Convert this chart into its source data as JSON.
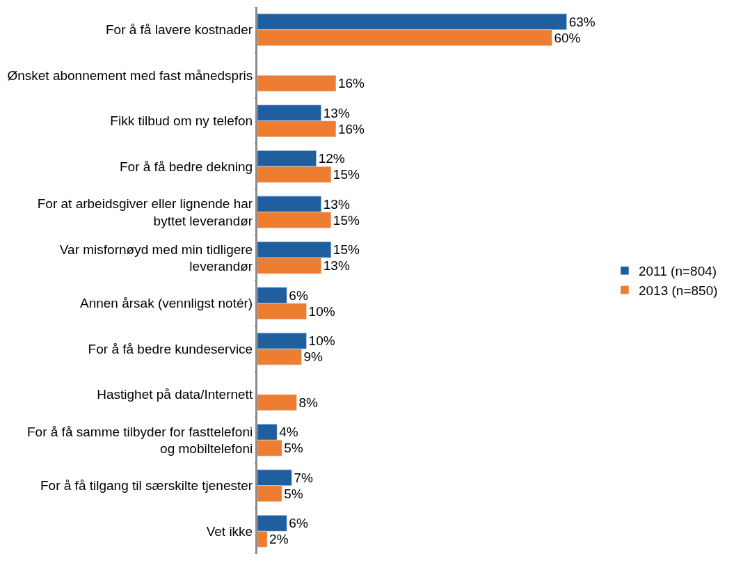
{
  "chart_data": {
    "type": "bar",
    "orientation": "horizontal",
    "categories": [
      "For å få lavere kostnader",
      "Ønsket abonnement med fast månedspris",
      "Fikk tilbud om ny telefon",
      "For å få bedre dekning",
      "For at arbeidsgiver eller lignende har byttet leverandør",
      "Var misfornøyd med min tidligere leverandør",
      "Annen årsak (vennligst notér)",
      "For å få bedre kundeservice",
      "Hastighet på data/Internett",
      "For å få samme tilbyder for fasttelefoni og mobiltelefoni",
      "For å få tilgang til særskilte tjenester",
      "Vet ikke"
    ],
    "series": [
      {
        "name": "2011 (n=804)",
        "color": "#1f5f9f",
        "values": [
          63,
          null,
          13,
          12,
          13,
          15,
          6,
          10,
          null,
          4,
          7,
          6
        ],
        "value_labels": [
          "63%",
          null,
          "13%",
          "12%",
          "13%",
          "15%",
          "6%",
          "10%",
          null,
          "4%",
          "7%",
          "6%"
        ]
      },
      {
        "name": "2013 (n=850)",
        "color": "#ed7d31",
        "values": [
          60,
          16,
          16,
          15,
          15,
          13,
          10,
          9,
          8,
          5,
          5,
          2
        ],
        "value_labels": [
          "60%",
          "16%",
          "16%",
          "15%",
          "15%",
          "13%",
          "10%",
          "9%",
          "8%",
          "5%",
          "5%",
          "2%"
        ]
      }
    ],
    "legend": "right"
  }
}
